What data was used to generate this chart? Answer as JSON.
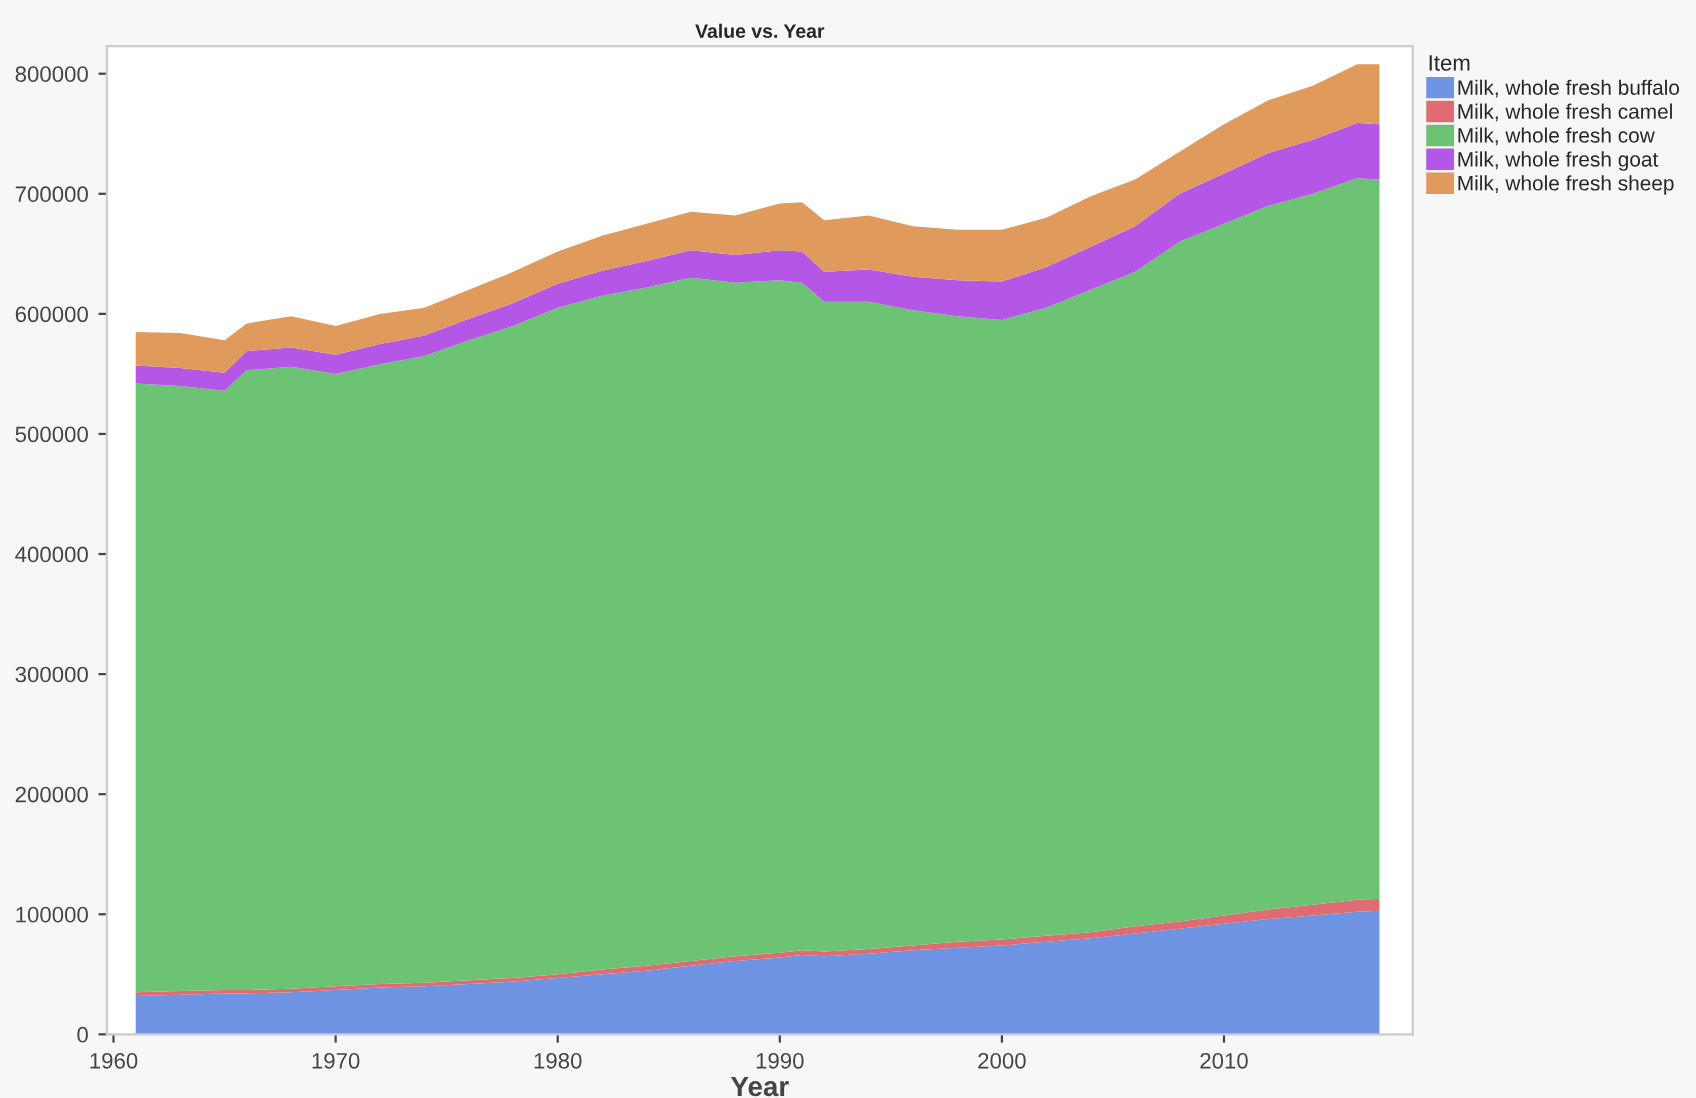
{
  "chart_data": {
    "type": "area",
    "stacked": true,
    "title": "Value vs. Year",
    "xlabel": "Year",
    "legend_title": "Item",
    "legend": "top right",
    "x": [
      1961,
      1963,
      1965,
      1966,
      1968,
      1970,
      1972,
      1974,
      1976,
      1978,
      1980,
      1982,
      1984,
      1986,
      1988,
      1990,
      1991,
      1992,
      1994,
      1996,
      1998,
      2000,
      2002,
      2004,
      2006,
      2008,
      2010,
      2012,
      2014,
      2016,
      2017
    ],
    "series": [
      {
        "name": "Milk, whole fresh buffalo",
        "color": "#6f94e4",
        "values": [
          32000,
          33000,
          34000,
          34000,
          35000,
          37000,
          39000,
          40000,
          42000,
          44000,
          47000,
          50000,
          53000,
          57000,
          61000,
          64000,
          66000,
          65000,
          67000,
          70000,
          72000,
          74000,
          77000,
          80000,
          84000,
          88000,
          92000,
          96000,
          99000,
          102000,
          103000
        ]
      },
      {
        "name": "Milk, whole fresh camel",
        "color": "#e06c73",
        "values": [
          3000,
          3000,
          3000,
          3000,
          3000,
          3000,
          3000,
          3000,
          3000,
          3000,
          3000,
          4000,
          4000,
          4000,
          4000,
          4000,
          4000,
          4000,
          4000,
          4000,
          5000,
          5000,
          5000,
          5000,
          6000,
          6000,
          7000,
          8000,
          9000,
          10000,
          10000
        ]
      },
      {
        "name": "Milk, whole fresh cow",
        "color": "#6cc374",
        "values": [
          507000,
          504000,
          499000,
          516000,
          518000,
          510000,
          516000,
          522000,
          533000,
          543000,
          555000,
          561000,
          565000,
          569000,
          561000,
          560000,
          556000,
          541000,
          539000,
          529000,
          521000,
          516000,
          523000,
          535000,
          545000,
          566000,
          576000,
          586000,
          592000,
          601000,
          599000
        ]
      },
      {
        "name": "Milk, whole fresh goat",
        "color": "#b456e6",
        "values": [
          15000,
          15000,
          15000,
          16000,
          16000,
          16000,
          17000,
          17000,
          18000,
          19000,
          20000,
          21000,
          22000,
          23000,
          23000,
          25000,
          26000,
          25000,
          27000,
          28000,
          30000,
          32000,
          34000,
          36000,
          38000,
          40000,
          42000,
          44000,
          45000,
          46000,
          46000
        ]
      },
      {
        "name": "Milk, whole fresh sheep",
        "color": "#df9a5c",
        "values": [
          28000,
          29000,
          27000,
          23000,
          26000,
          24000,
          25000,
          23000,
          24000,
          26000,
          27000,
          29000,
          31000,
          32000,
          33000,
          39000,
          41000,
          43000,
          45000,
          42000,
          42000,
          43000,
          41000,
          42000,
          39000,
          35000,
          41000,
          44000,
          45000,
          49000,
          50000
        ]
      }
    ],
    "xlim": [
      1959.7,
      2018.5
    ],
    "xticks": [
      1960,
      1970,
      1980,
      1990,
      2000,
      2010
    ],
    "ylim": [
      0,
      823000
    ],
    "yticks": [
      0,
      100000,
      200000,
      300000,
      400000,
      500000,
      600000,
      700000,
      800000
    ]
  }
}
